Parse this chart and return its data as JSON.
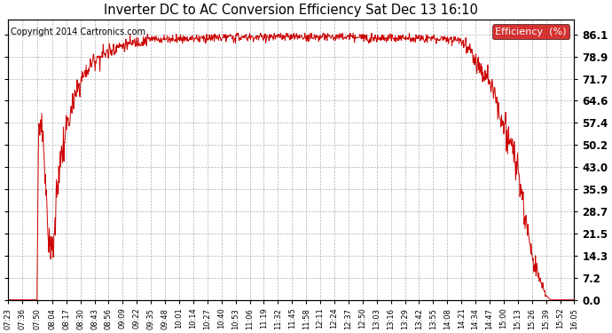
{
  "title": "Inverter DC to AC Conversion Efficiency Sat Dec 13 16:10",
  "copyright": "Copyright 2014 Cartronics.com",
  "legend_label": "Efficiency  (%)",
  "legend_bg": "#cc0000",
  "legend_text_color": "#ffffff",
  "line_color": "#cc0000",
  "background_color": "#ffffff",
  "grid_color": "#b0b0b0",
  "yticks": [
    0.0,
    7.2,
    14.3,
    21.5,
    28.7,
    35.9,
    43.0,
    50.2,
    57.4,
    64.6,
    71.7,
    78.9,
    86.1
  ],
  "xtick_labels": [
    "07:23",
    "07:36",
    "07:50",
    "08:04",
    "08:17",
    "08:30",
    "08:43",
    "08:56",
    "09:09",
    "09:22",
    "09:35",
    "09:48",
    "10:01",
    "10:14",
    "10:27",
    "10:40",
    "10:53",
    "11:06",
    "11:19",
    "11:32",
    "11:45",
    "11:58",
    "12:11",
    "12:24",
    "12:37",
    "12:50",
    "13:03",
    "13:16",
    "13:29",
    "13:42",
    "13:55",
    "14:08",
    "14:21",
    "14:34",
    "14:47",
    "15:00",
    "15:13",
    "15:26",
    "15:39",
    "15:52",
    "16:05"
  ],
  "ylim": [
    0.0,
    91.0
  ],
  "figsize": [
    6.9,
    3.75
  ],
  "dpi": 100
}
